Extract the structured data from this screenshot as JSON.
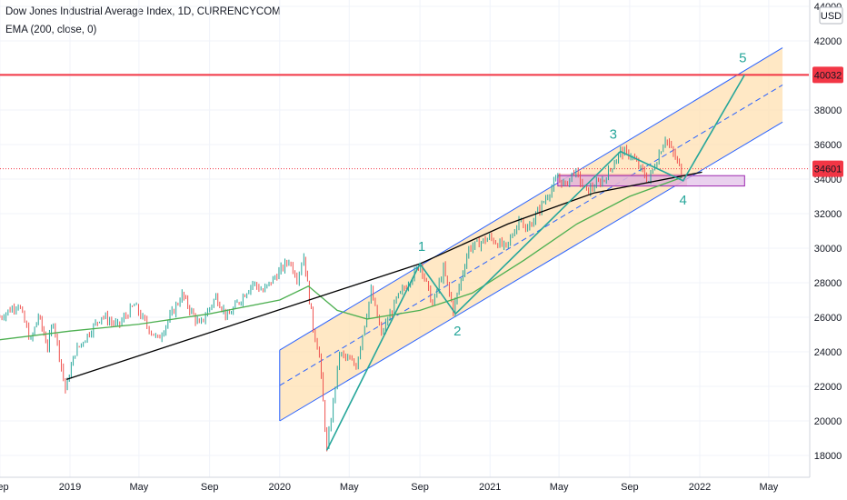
{
  "header": {
    "title": "Dow Jones Industrial Average Index, 1D, CURRENCYCOM",
    "indicator": "EMA (200, close, 0)",
    "currency": "USD"
  },
  "colors": {
    "up": "#26a69a",
    "down": "#ef5350",
    "ema": "#4caf50",
    "channel": "#2962ff",
    "channel_fill": "#ffe0b2",
    "resistance": "#f23645",
    "wave": "#26a69a",
    "trend": "#000000",
    "zone_fill": "#e1bee7",
    "zone_border": "#9c27b0",
    "price_zone_fill": "#ef9a9a"
  },
  "chart_data": {
    "type": "line",
    "title": "Dow Jones Industrial Average Index, 1D, CURRENCYCOM",
    "ylim": [
      17000,
      44000
    ],
    "y_ticks": [
      18000,
      20000,
      22000,
      24000,
      26000,
      28000,
      30000,
      32000,
      34000,
      36000,
      38000,
      40000,
      42000,
      44000
    ],
    "x_ticks": [
      "Sep",
      "2019",
      "May",
      "Sep",
      "2020",
      "May",
      "Sep",
      "2021",
      "May",
      "Sep",
      "2022",
      "May"
    ],
    "x_tick_dates": [
      "2018-09",
      "2019-01",
      "2019-05",
      "2019-09",
      "2020-01",
      "2020-05",
      "2020-09",
      "2021-01",
      "2021-05",
      "2021-09",
      "2022-01",
      "2022-05"
    ],
    "price_series": {
      "name": "Dow Jones Industrial Average Index",
      "points": [
        [
          "2018-09-01",
          26000
        ],
        [
          "2018-10-03",
          26800
        ],
        [
          "2018-10-25",
          24600
        ],
        [
          "2018-11-07",
          26100
        ],
        [
          "2018-11-23",
          24300
        ],
        [
          "2018-12-03",
          25800
        ],
        [
          "2018-12-24",
          21800
        ],
        [
          "2019-01-10",
          24000
        ],
        [
          "2019-02-25",
          26100
        ],
        [
          "2019-03-25",
          25500
        ],
        [
          "2019-04-23",
          26700
        ],
        [
          "2019-05-15",
          25500
        ],
        [
          "2019-06-03",
          24700
        ],
        [
          "2019-07-15",
          27300
        ],
        [
          "2019-08-14",
          25500
        ],
        [
          "2019-09-12",
          27200
        ],
        [
          "2019-10-02",
          26000
        ],
        [
          "2019-11-15",
          28000
        ],
        [
          "2019-12-03",
          27500
        ],
        [
          "2020-01-17",
          29300
        ],
        [
          "2020-01-31",
          28300
        ],
        [
          "2020-02-12",
          29550
        ],
        [
          "2020-02-28",
          25400
        ],
        [
          "2020-03-10",
          23800
        ],
        [
          "2020-03-23",
          18300
        ],
        [
          "2020-04-14",
          23900
        ],
        [
          "2020-05-13",
          23200
        ],
        [
          "2020-06-08",
          27500
        ],
        [
          "2020-06-26",
          25000
        ],
        [
          "2020-07-22",
          27000
        ],
        [
          "2020-09-02",
          29100
        ],
        [
          "2020-09-23",
          26700
        ],
        [
          "2020-10-12",
          28800
        ],
        [
          "2020-10-29",
          26400
        ],
        [
          "2020-11-25",
          30000
        ],
        [
          "2020-12-31",
          30600
        ],
        [
          "2021-01-29",
          30000
        ],
        [
          "2021-02-24",
          31900
        ],
        [
          "2021-03-04",
          30900
        ],
        [
          "2021-04-29",
          34100
        ],
        [
          "2021-05-12",
          33600
        ],
        [
          "2021-05-27",
          34500
        ],
        [
          "2021-06-18",
          33300
        ],
        [
          "2021-07-19",
          34000
        ],
        [
          "2021-08-16",
          35600
        ],
        [
          "2021-09-03",
          35400
        ],
        [
          "2021-10-04",
          33900
        ],
        [
          "2021-11-02",
          36400
        ],
        [
          "2021-11-30",
          34500
        ],
        [
          "2021-12-03",
          33900
        ]
      ]
    },
    "ema_series": {
      "name": "EMA (200, close, 0)",
      "points": [
        [
          "2018-09-01",
          24700
        ],
        [
          "2019-01-01",
          25200
        ],
        [
          "2019-05-01",
          25600
        ],
        [
          "2019-09-01",
          26200
        ],
        [
          "2020-01-01",
          27000
        ],
        [
          "2020-02-20",
          27800
        ],
        [
          "2020-04-10",
          26400
        ],
        [
          "2020-06-01",
          25900
        ],
        [
          "2020-09-01",
          26400
        ],
        [
          "2020-12-01",
          27400
        ],
        [
          "2021-03-01",
          29300
        ],
        [
          "2021-06-01",
          31400
        ],
        [
          "2021-09-01",
          33000
        ],
        [
          "2021-12-01",
          34100
        ]
      ]
    },
    "resistance_level": 40032,
    "current_price": 34601,
    "price_labels": [
      "40032",
      "34601"
    ],
    "support_zone": {
      "from": "2021-04-29",
      "to": "2022-03-20",
      "low": 33600,
      "high": 34200
    },
    "price_zone": {
      "from": "2021-04-29",
      "to": "2021-12-10",
      "low": 33600,
      "high": 34300
    },
    "channel": {
      "from": "2020-01-01",
      "to": "2022-05-25",
      "lower_start": 20000,
      "lower_end": 37300,
      "upper_start": 24100,
      "upper_end": 41600
    },
    "trendline": {
      "points": [
        [
          "2018-12-26",
          22400
        ],
        [
          "2020-09-01",
          29100
        ],
        [
          "2021-02-01",
          31400
        ],
        [
          "2021-07-01",
          33200
        ],
        [
          "2022-01-05",
          34400
        ]
      ]
    },
    "elliott_waves": [
      {
        "label": "1",
        "date": "2020-09-01",
        "value": 29100
      },
      {
        "label": "2",
        "date": "2020-11-02",
        "value": 26200
      },
      {
        "label": "3",
        "date": "2021-08-16",
        "value": 35600
      },
      {
        "label": "4",
        "date": "2021-12-03",
        "value": 33900
      },
      {
        "label": "5",
        "date": "2022-03-20",
        "value": 40032
      }
    ],
    "wave_start": {
      "date": "2020-03-23",
      "value": 18300
    },
    "grid": true,
    "legend": "top-left"
  }
}
